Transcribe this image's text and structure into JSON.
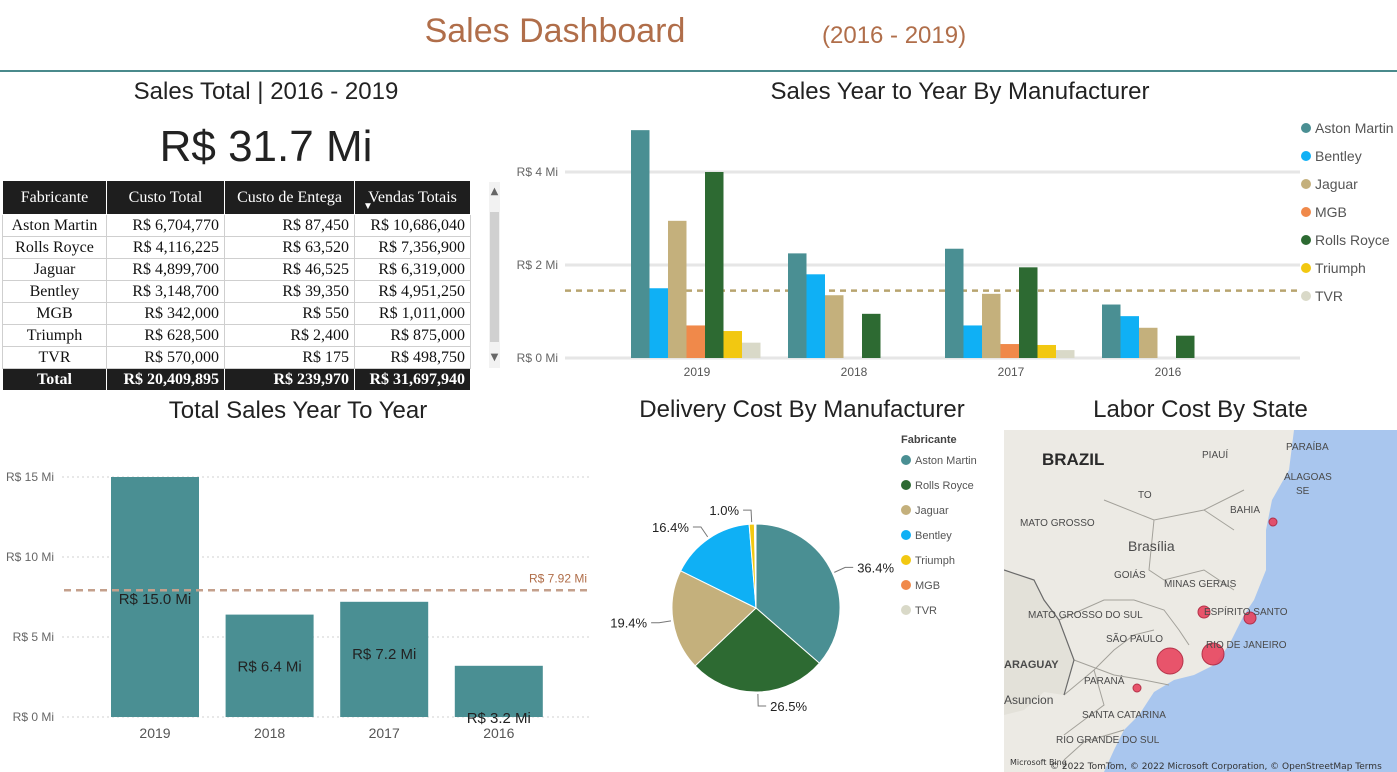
{
  "header": {
    "title": "Sales Dashboard",
    "subtitle": "(2016 - 2019)"
  },
  "sales_total": {
    "title": "Sales Total | 2016 - 2019",
    "kpi": "R$ 31.7 Mi",
    "table": {
      "columns": [
        "Fabricante",
        "Custo Total",
        "Custo de Entega",
        "Vendas Totais"
      ],
      "sort_icon": "sort-desc-icon",
      "rows": [
        [
          "Aston Martin",
          "R$ 6,704,770",
          "R$ 87,450",
          "R$ 10,686,040"
        ],
        [
          "Rolls Royce",
          "R$ 4,116,225",
          "R$ 63,520",
          "R$ 7,356,900"
        ],
        [
          "Jaguar",
          "R$ 4,899,700",
          "R$ 46,525",
          "R$ 6,319,000"
        ],
        [
          "Bentley",
          "R$ 3,148,700",
          "R$ 39,350",
          "R$ 4,951,250"
        ],
        [
          "MGB",
          "R$ 342,000",
          "R$ 550",
          "R$ 1,011,000"
        ],
        [
          "Triumph",
          "R$ 628,500",
          "R$ 2,400",
          "R$ 875,000"
        ],
        [
          "TVR",
          "R$ 570,000",
          "R$ 175",
          "R$ 498,750"
        ]
      ],
      "total": [
        "Total",
        "R$ 20,409,895",
        "R$ 239,970",
        "R$ 31,697,940"
      ]
    }
  },
  "chart_data": [
    {
      "type": "bar",
      "title": "Sales Year to Year By Manufacturer",
      "categories": [
        "2019",
        "2018",
        "2017",
        "2016"
      ],
      "series": [
        {
          "name": "Aston Martin",
          "color": "#4a8f93",
          "values": [
            4.9,
            2.25,
            2.35,
            1.15
          ]
        },
        {
          "name": "Bentley",
          "color": "#0fb0f5",
          "values": [
            1.5,
            1.8,
            0.7,
            0.9
          ]
        },
        {
          "name": "Jaguar",
          "color": "#c4b07c",
          "values": [
            2.95,
            1.35,
            1.38,
            0.65
          ]
        },
        {
          "name": "MGB",
          "color": "#f0894a",
          "values": [
            0.7,
            0,
            0.3,
            0
          ]
        },
        {
          "name": "Rolls Royce",
          "color": "#2d6a32",
          "values": [
            4.0,
            0.95,
            1.95,
            0.48
          ]
        },
        {
          "name": "Triumph",
          "color": "#f2c811",
          "values": [
            0.58,
            0,
            0.28,
            0
          ]
        },
        {
          "name": "TVR",
          "color": "#d9d9c8",
          "values": [
            0.33,
            0,
            0.17,
            0
          ]
        }
      ],
      "y_ticks": [
        "R$ 0 Mi",
        "R$ 2 Mi",
        "R$ 4 Mi"
      ],
      "ylim": [
        0,
        5
      ],
      "average_line": 1.45,
      "legend_position": "right"
    },
    {
      "type": "bar",
      "title": "Total Sales Year To Year",
      "categories": [
        "2019",
        "2018",
        "2017",
        "2016"
      ],
      "values": [
        15.0,
        6.4,
        7.2,
        3.2
      ],
      "data_labels": [
        "R$ 15.0 Mi",
        "R$ 6.4 Mi",
        "R$ 7.2 Mi",
        "R$ 3.2 Mi"
      ],
      "color": "#4a8f93",
      "y_ticks": [
        "R$ 0 Mi",
        "R$ 5 Mi",
        "R$ 10 Mi",
        "R$ 15 Mi"
      ],
      "ylim": [
        0,
        15
      ],
      "average_line": 7.92,
      "average_label": "R$ 7.92 Mi"
    },
    {
      "type": "pie",
      "title": "Delivery Cost By Manufacturer",
      "legend_title": "Fabricante",
      "legend_position": "right",
      "slices": [
        {
          "name": "Aston Martin",
          "value": 36.4,
          "label": "36.4%",
          "color": "#4a8f93"
        },
        {
          "name": "Rolls Royce",
          "value": 26.5,
          "label": "26.5%",
          "color": "#2d6a32"
        },
        {
          "name": "Jaguar",
          "value": 19.4,
          "label": "19.4%",
          "color": "#c4b07c"
        },
        {
          "name": "Bentley",
          "value": 16.4,
          "label": "16.4%",
          "color": "#0fb0f5"
        },
        {
          "name": "Triumph",
          "value": 1.0,
          "label": "1.0%",
          "color": "#f2c811"
        },
        {
          "name": "MGB",
          "value": 0.2,
          "label": "",
          "color": "#f0894a"
        },
        {
          "name": "TVR",
          "value": 0.1,
          "label": "",
          "color": "#d9d9c8"
        }
      ]
    }
  ],
  "map": {
    "title": "Labor Cost By State",
    "labels": [
      "BRAZIL",
      "PIAUÍ",
      "PARAÍBA",
      "ALAGOAS",
      "SE",
      "TO",
      "BAHIA",
      "MATO GROSSO",
      "Brasília",
      "GOIÁS",
      "MINAS GERAIS",
      "ESPÍRITO SANTO",
      "MATO GROSSO DO SUL",
      "SÃO PAULO",
      "RIO DE JANEIRO",
      "ARAGUAY",
      "PARANÁ",
      "Asuncion",
      "SANTA CATARINA",
      "RIO GRANDE DO SUL"
    ],
    "footer": "© 2022 TomTom, © 2022 Microsoft Corporation, © OpenStreetMap  Terms",
    "brand": "Microsoft Bing"
  }
}
